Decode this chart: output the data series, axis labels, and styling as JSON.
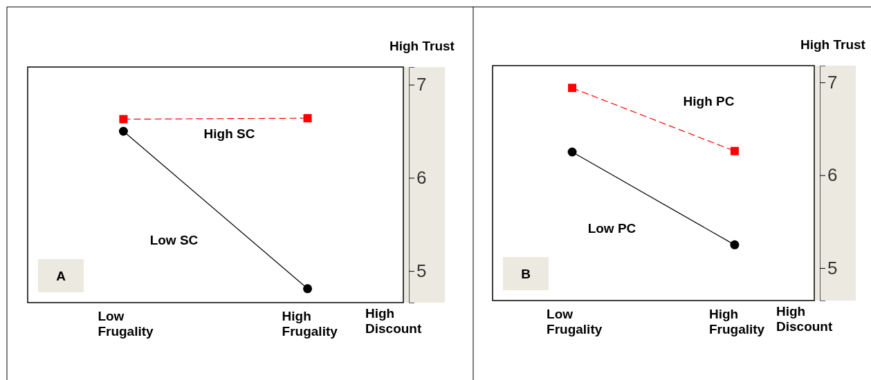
{
  "chart_data": [
    {
      "type": "line",
      "title": "A",
      "ylabel": "High Trust",
      "xlabel": "High Discount",
      "categories": [
        "Low\nFrugality",
        "High\nFrugality"
      ],
      "series": [
        {
          "name": "High SC",
          "color": "#ff0000",
          "values": [
            6.63,
            6.64
          ],
          "marker": "square",
          "line_style": "dashed"
        },
        {
          "name": "Low SC",
          "color": "#000000",
          "values": [
            6.5,
            4.81
          ],
          "marker": "circle",
          "line_style": "solid"
        }
      ],
      "ylim": [
        4.66,
        7.19
      ],
      "yticks": [
        5,
        6,
        7
      ],
      "grid": false,
      "legend": false
    },
    {
      "type": "line",
      "title": "B",
      "ylabel": "High Trust",
      "xlabel": "High Discount",
      "categories": [
        "Low\nFrugality",
        "High\nFrugality"
      ],
      "series": [
        {
          "name": "High PC",
          "color": "#ff0000",
          "values": [
            6.94,
            6.26
          ],
          "marker": "square",
          "line_style": "dashed"
        },
        {
          "name": "Low PC",
          "color": "#000000",
          "values": [
            6.25,
            5.25
          ],
          "marker": "circle",
          "line_style": "solid"
        }
      ],
      "ylim": [
        4.65,
        7.18
      ],
      "yticks": [
        5,
        6,
        7
      ],
      "grid": false,
      "legend": false
    }
  ]
}
